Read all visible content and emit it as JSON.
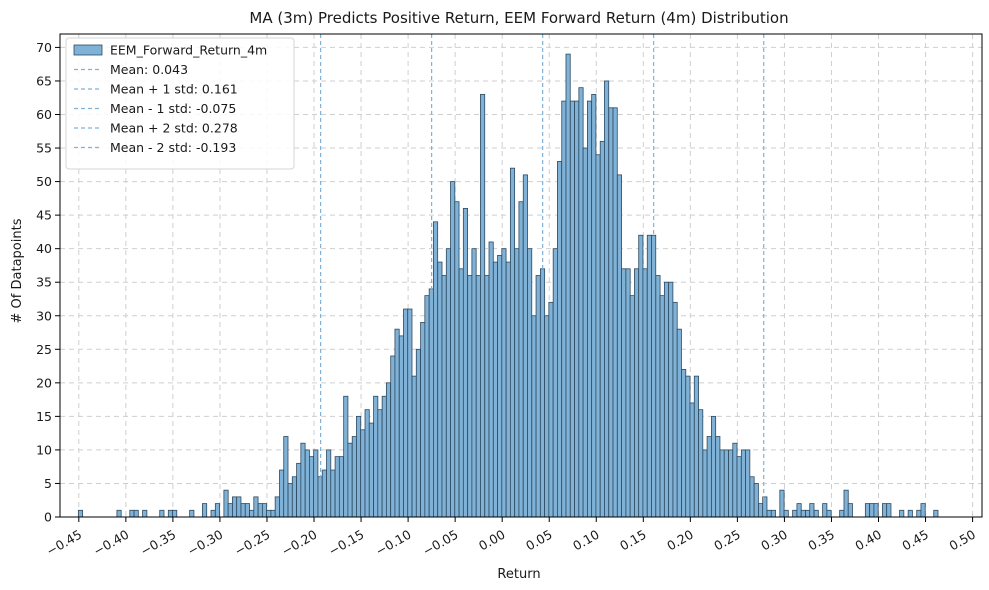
{
  "chart_data": {
    "type": "bar",
    "title": "MA (3m) Predicts Positive Return, EEM Forward Return (4m) Distribution",
    "xlabel": "Return",
    "ylabel": "# Of Datapoints",
    "xlim": [
      -0.47,
      0.51
    ],
    "ylim": [
      0,
      72
    ],
    "grid": true,
    "legend_position": "top-left",
    "bar_color": "#7fb2d6",
    "bar_edge_color": "#2e4a60",
    "line_color": "#7fb2d6",
    "x_ticks": [
      "−0.45",
      "−0.40",
      "−0.35",
      "−0.30",
      "−0.25",
      "−0.20",
      "−0.15",
      "−0.10",
      "−0.05",
      "0.00",
      "0.05",
      "0.10",
      "0.15",
      "0.20",
      "0.25",
      "0.30",
      "0.35",
      "0.40",
      "0.45",
      "0.50"
    ],
    "x_tick_values": [
      -0.45,
      -0.4,
      -0.35,
      -0.3,
      -0.25,
      -0.2,
      -0.15,
      -0.1,
      -0.05,
      0.0,
      0.05,
      0.1,
      0.15,
      0.2,
      0.25,
      0.3,
      0.35,
      0.4,
      0.45,
      0.5
    ],
    "y_ticks": [
      "0",
      "5",
      "10",
      "15",
      "20",
      "25",
      "30",
      "35",
      "40",
      "45",
      "50",
      "55",
      "60",
      "65",
      "70"
    ],
    "y_tick_values": [
      0,
      5,
      10,
      15,
      20,
      25,
      30,
      35,
      40,
      45,
      50,
      55,
      60,
      65,
      70
    ],
    "series": [
      {
        "name": "EEM_Forward_Return_4m",
        "bin_width": 0.00454,
        "bins": [
          [
            -0.4505,
            1
          ],
          [
            -0.4095,
            1
          ],
          [
            -0.3958,
            1
          ],
          [
            -0.3913,
            1
          ],
          [
            -0.3822,
            1
          ],
          [
            -0.364,
            1
          ],
          [
            -0.3549,
            1
          ],
          [
            -0.3504,
            1
          ],
          [
            -0.3322,
            1
          ],
          [
            -0.3186,
            2
          ],
          [
            -0.3095,
            1
          ],
          [
            -0.3049,
            2
          ],
          [
            -0.2958,
            4
          ],
          [
            -0.2913,
            2
          ],
          [
            -0.2867,
            3
          ],
          [
            -0.2822,
            3
          ],
          [
            -0.2776,
            2
          ],
          [
            -0.2731,
            2
          ],
          [
            -0.2685,
            1
          ],
          [
            -0.264,
            3
          ],
          [
            -0.2594,
            2
          ],
          [
            -0.2549,
            2
          ],
          [
            -0.2504,
            1
          ],
          [
            -0.2458,
            1
          ],
          [
            -0.2413,
            3
          ],
          [
            -0.2367,
            7
          ],
          [
            -0.2322,
            12
          ],
          [
            -0.2276,
            5
          ],
          [
            -0.2231,
            6
          ],
          [
            -0.2185,
            8
          ],
          [
            -0.214,
            11
          ],
          [
            -0.2094,
            10
          ],
          [
            -0.2049,
            9
          ],
          [
            -0.2004,
            10
          ],
          [
            -0.1958,
            6
          ],
          [
            -0.1913,
            7
          ],
          [
            -0.1867,
            10
          ],
          [
            -0.1822,
            7
          ],
          [
            -0.1776,
            9
          ],
          [
            -0.1731,
            9
          ],
          [
            -0.1685,
            18
          ],
          [
            -0.164,
            11
          ],
          [
            -0.1594,
            12
          ],
          [
            -0.1549,
            15
          ],
          [
            -0.1504,
            13
          ],
          [
            -0.1458,
            16
          ],
          [
            -0.1413,
            14
          ],
          [
            -0.1367,
            18
          ],
          [
            -0.1322,
            16
          ],
          [
            -0.1276,
            18
          ],
          [
            -0.1231,
            20
          ],
          [
            -0.1185,
            24
          ],
          [
            -0.114,
            28
          ],
          [
            -0.1094,
            27
          ],
          [
            -0.1049,
            31
          ],
          [
            -0.1004,
            31
          ],
          [
            -0.0958,
            21
          ],
          [
            -0.0913,
            25
          ],
          [
            -0.0867,
            29
          ],
          [
            -0.0822,
            33
          ],
          [
            -0.0776,
            34
          ],
          [
            -0.0731,
            44
          ],
          [
            -0.0685,
            38
          ],
          [
            -0.064,
            36
          ],
          [
            -0.0594,
            40
          ],
          [
            -0.0549,
            50
          ],
          [
            -0.0504,
            47
          ],
          [
            -0.0458,
            37
          ],
          [
            -0.0413,
            46
          ],
          [
            -0.0367,
            36
          ],
          [
            -0.0322,
            40
          ],
          [
            -0.0276,
            36
          ],
          [
            -0.0231,
            63
          ],
          [
            -0.0185,
            36
          ],
          [
            -0.014,
            41
          ],
          [
            -0.0094,
            38
          ],
          [
            -0.0049,
            39
          ],
          [
            -0.0004,
            40
          ],
          [
            0.0042,
            38
          ],
          [
            0.0087,
            52
          ],
          [
            0.0133,
            40
          ],
          [
            0.0178,
            47
          ],
          [
            0.0224,
            51
          ],
          [
            0.0269,
            40
          ],
          [
            0.0315,
            30
          ],
          [
            0.036,
            36
          ],
          [
            0.0406,
            37
          ],
          [
            0.0451,
            30
          ],
          [
            0.0496,
            32
          ],
          [
            0.0542,
            40
          ],
          [
            0.0587,
            53
          ],
          [
            0.0633,
            62
          ],
          [
            0.0678,
            69
          ],
          [
            0.0724,
            62
          ],
          [
            0.0769,
            62
          ],
          [
            0.0815,
            64
          ],
          [
            0.086,
            55
          ],
          [
            0.0906,
            62
          ],
          [
            0.0951,
            63
          ],
          [
            0.0996,
            54
          ],
          [
            0.1042,
            56
          ],
          [
            0.1087,
            65
          ],
          [
            0.1133,
            61
          ],
          [
            0.1178,
            61
          ],
          [
            0.1224,
            51
          ],
          [
            0.1269,
            37
          ],
          [
            0.1315,
            37
          ],
          [
            0.136,
            33
          ],
          [
            0.1406,
            37
          ],
          [
            0.1451,
            42
          ],
          [
            0.1496,
            37
          ],
          [
            0.1542,
            42
          ],
          [
            0.1587,
            42
          ],
          [
            0.1633,
            36
          ],
          [
            0.1678,
            33
          ],
          [
            0.1724,
            35
          ],
          [
            0.1769,
            35
          ],
          [
            0.1815,
            32
          ],
          [
            0.186,
            28
          ],
          [
            0.1906,
            22
          ],
          [
            0.1951,
            21
          ],
          [
            0.1996,
            17
          ],
          [
            0.2042,
            21
          ],
          [
            0.2087,
            16
          ],
          [
            0.2133,
            10
          ],
          [
            0.2178,
            12
          ],
          [
            0.2224,
            15
          ],
          [
            0.2269,
            12
          ],
          [
            0.2315,
            10
          ],
          [
            0.236,
            10
          ],
          [
            0.2406,
            10
          ],
          [
            0.2451,
            11
          ],
          [
            0.2496,
            9
          ],
          [
            0.2542,
            10
          ],
          [
            0.2587,
            10
          ],
          [
            0.2633,
            6
          ],
          [
            0.2678,
            5
          ],
          [
            0.2724,
            2
          ],
          [
            0.2769,
            3
          ],
          [
            0.2815,
            1
          ],
          [
            0.286,
            1
          ],
          [
            0.2951,
            4
          ],
          [
            0.2996,
            1
          ],
          [
            0.3087,
            1
          ],
          [
            0.3133,
            2
          ],
          [
            0.3178,
            1
          ],
          [
            0.3224,
            1
          ],
          [
            0.3269,
            2
          ],
          [
            0.3315,
            1
          ],
          [
            0.3406,
            2
          ],
          [
            0.3451,
            1
          ],
          [
            0.3587,
            1
          ],
          [
            0.3633,
            4
          ],
          [
            0.3678,
            2
          ],
          [
            0.386,
            2
          ],
          [
            0.3906,
            2
          ],
          [
            0.3951,
            2
          ],
          [
            0.4042,
            2
          ],
          [
            0.4087,
            2
          ],
          [
            0.4224,
            1
          ],
          [
            0.4315,
            1
          ],
          [
            0.4406,
            1
          ],
          [
            0.4451,
            2
          ],
          [
            0.4587,
            1
          ]
        ]
      }
    ],
    "reference_lines": [
      {
        "name": "Mean: 0.043",
        "x": 0.043
      },
      {
        "name": "Mean + 1 std: 0.161",
        "x": 0.161
      },
      {
        "name": "Mean - 1 std: -0.075",
        "x": -0.075
      },
      {
        "name": "Mean + 2 std: 0.278",
        "x": 0.278
      },
      {
        "name": "Mean - 2 std: -0.193",
        "x": -0.193
      }
    ]
  }
}
